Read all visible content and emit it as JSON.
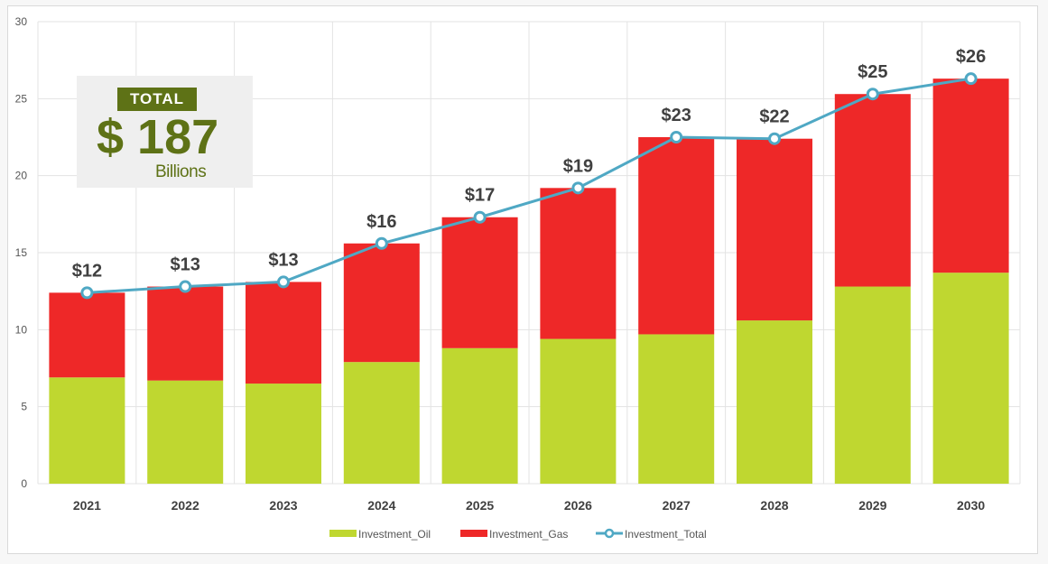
{
  "chart_data": {
    "type": "bar",
    "stacked": true,
    "categories": [
      "2021",
      "2022",
      "2023",
      "2024",
      "2025",
      "2026",
      "2027",
      "2028",
      "2029",
      "2030"
    ],
    "series": [
      {
        "name": "Investment_Oil",
        "type": "bar",
        "color": "#bfd730",
        "values": [
          6.9,
          6.7,
          6.5,
          7.9,
          8.8,
          9.4,
          9.7,
          10.6,
          12.8,
          13.7
        ]
      },
      {
        "name": "Investment_Gas",
        "type": "bar",
        "color": "#ee2828",
        "values": [
          5.5,
          6.1,
          6.6,
          7.7,
          8.5,
          9.8,
          12.8,
          11.8,
          12.5,
          12.6
        ]
      },
      {
        "name": "Investment_Total",
        "type": "line",
        "color": "#4fa8c4",
        "values": [
          12.4,
          12.8,
          13.1,
          15.6,
          17.3,
          19.2,
          22.5,
          22.4,
          25.3,
          26.3
        ]
      }
    ],
    "data_labels": [
      "$12",
      "$13",
      "$13",
      "$16",
      "$17",
      "$19",
      "$23",
      "$22",
      "$25",
      "$26"
    ],
    "ylim": [
      0,
      30
    ],
    "yticks": [
      0,
      5,
      10,
      15,
      20,
      25,
      30
    ],
    "grid": true,
    "legend_position": "bottom",
    "xlabel": "",
    "ylabel": "",
    "title": ""
  },
  "callout": {
    "tag": "TOTAL",
    "value": "$ 187",
    "unit": "Billions"
  }
}
